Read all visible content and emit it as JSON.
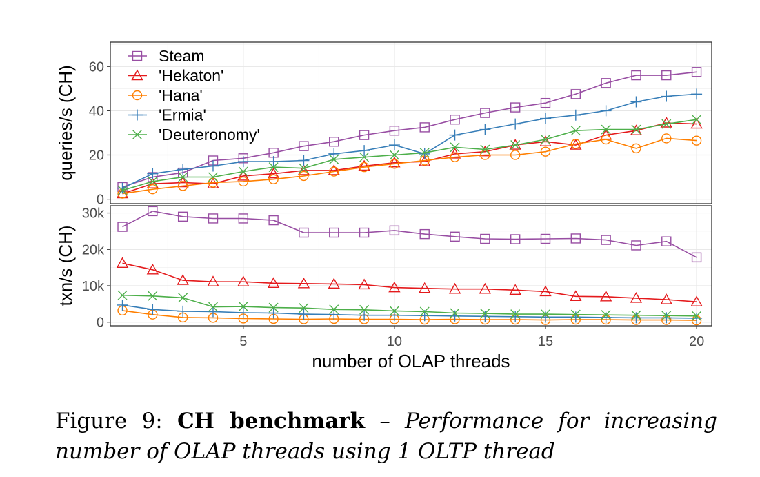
{
  "chart_data": [
    {
      "type": "line",
      "panel": "top",
      "ylabel": "queries/s (CH)",
      "ylim": [
        -2,
        71
      ],
      "yticks": [
        0,
        20,
        40,
        60
      ],
      "ytick_labels": [
        "0",
        "20",
        "40",
        "60"
      ],
      "legend_position": "top-left",
      "grid": true,
      "x": [
        1,
        2,
        3,
        4,
        5,
        6,
        7,
        8,
        9,
        10,
        11,
        12,
        13,
        14,
        15,
        16,
        17,
        18,
        19,
        20
      ],
      "series": [
        {
          "name": "Steam",
          "color": "#984EA3",
          "marker": "square",
          "values": [
            5.5,
            10,
            12,
            17.5,
            18.5,
            21,
            24,
            26,
            29,
            31,
            32.5,
            36,
            39,
            41.5,
            43.5,
            47.5,
            52.5,
            56,
            56,
            57.5
          ]
        },
        {
          "name": "'Hekaton'",
          "color": "#E41A1C",
          "marker": "triangle",
          "values": [
            2.5,
            7,
            7.5,
            7,
            10.5,
            11.5,
            13,
            13,
            15,
            16.5,
            17,
            20.5,
            21.5,
            24.5,
            26,
            24.5,
            29,
            31,
            34.5,
            34
          ]
        },
        {
          "name": "'Hana'",
          "color": "#FF7F00",
          "marker": "circle",
          "values": [
            2.5,
            4.5,
            6,
            7.5,
            8,
            9,
            10.5,
            12.5,
            14.5,
            16,
            17.5,
            19,
            20,
            20,
            21.5,
            25,
            27,
            23,
            27.5,
            26.5
          ]
        },
        {
          "name": "'Ermia'",
          "color": "#377EB8",
          "marker": "plus",
          "values": [
            5,
            11.5,
            13.5,
            15,
            17,
            17,
            17.5,
            20.5,
            22,
            24.5,
            20.5,
            29,
            31.5,
            34,
            36.5,
            38,
            40,
            44,
            46.5,
            47.5
          ]
        },
        {
          "name": "'Deuteronomy'",
          "color": "#4DAF4A",
          "marker": "cross",
          "values": [
            4,
            8,
            10,
            10,
            12.5,
            14.5,
            14,
            18,
            19,
            20,
            21,
            23.5,
            22.5,
            24.5,
            27,
            31,
            31.5,
            31.5,
            34,
            36
          ]
        }
      ]
    },
    {
      "type": "line",
      "panel": "bottom",
      "ylabel": "txn/s (CH)",
      "xlabel": "number of OLAP threads",
      "ylim": [
        -1000,
        32000
      ],
      "yticks": [
        0,
        10000,
        20000,
        30000
      ],
      "ytick_labels": [
        "0",
        "10k",
        "20k",
        "30k"
      ],
      "xlim": [
        0.6,
        20.5
      ],
      "xticks": [
        5,
        10,
        15,
        20
      ],
      "xtick_labels": [
        "5",
        "10",
        "15",
        "20"
      ],
      "grid": true,
      "x": [
        1,
        2,
        3,
        4,
        5,
        6,
        7,
        8,
        9,
        10,
        11,
        12,
        13,
        14,
        15,
        16,
        17,
        18,
        19,
        20
      ],
      "series": [
        {
          "name": "Steam",
          "color": "#984EA3",
          "marker": "square",
          "values": [
            26200,
            30500,
            29000,
            28500,
            28500,
            28000,
            24600,
            24600,
            24600,
            25200,
            24200,
            23500,
            22900,
            22800,
            22900,
            23000,
            22600,
            21100,
            22200,
            17800
          ]
        },
        {
          "name": "'Hekaton'",
          "color": "#E41A1C",
          "marker": "triangle",
          "values": [
            16200,
            14400,
            11500,
            11100,
            11100,
            10700,
            10600,
            10500,
            10300,
            9500,
            9300,
            9100,
            9100,
            8800,
            8400,
            7100,
            7000,
            6600,
            6200,
            5600
          ]
        },
        {
          "name": "'Hana'",
          "color": "#FF7F00",
          "marker": "circle",
          "values": [
            3200,
            2100,
            1300,
            1200,
            1000,
            900,
            800,
            900,
            800,
            800,
            700,
            800,
            700,
            700,
            600,
            700,
            700,
            600,
            600,
            500
          ]
        },
        {
          "name": "'Ermia'",
          "color": "#377EB8",
          "marker": "plus",
          "values": [
            4700,
            3500,
            3000,
            2900,
            2600,
            2500,
            2200,
            2100,
            1900,
            1900,
            1800,
            1700,
            1600,
            1500,
            1400,
            1400,
            1300,
            1200,
            1200,
            1100
          ]
        },
        {
          "name": "'Deuteronomy'",
          "color": "#4DAF4A",
          "marker": "cross",
          "values": [
            7400,
            7200,
            6700,
            4200,
            4300,
            4000,
            3900,
            3500,
            3400,
            3100,
            2900,
            2500,
            2400,
            2200,
            2200,
            2100,
            2000,
            1900,
            1800,
            1700
          ]
        }
      ]
    }
  ],
  "caption": {
    "prefix": "Figure 9:",
    "bold": "CH benchmark",
    "separator": "–",
    "italic": "Performance for increasing number of OLAP threads using 1 OLTP thread"
  }
}
